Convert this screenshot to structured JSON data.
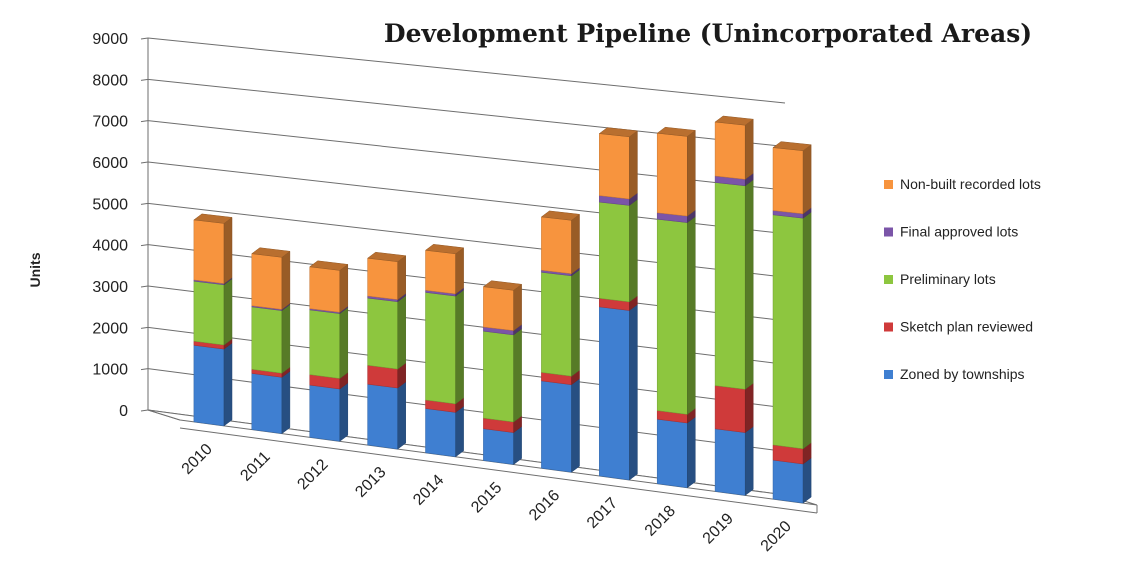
{
  "chart_data": {
    "type": "bar",
    "stacked": true,
    "three_d": true,
    "title": "Development Pipeline (Unincorporated Areas)",
    "ylabel": "Units",
    "xlabel": "",
    "ylim": [
      0,
      9000
    ],
    "yticks": [
      0,
      1000,
      2000,
      3000,
      4000,
      5000,
      6000,
      7000,
      8000,
      9000
    ],
    "grid": true,
    "legend_position": "right",
    "categories": [
      "2010",
      "2011",
      "2012",
      "2013",
      "2014",
      "2015",
      "2016",
      "2017",
      "2018",
      "2019",
      "2020"
    ],
    "series": [
      {
        "name": "Zoned by townships",
        "color": "#3f7fd1",
        "values": [
          1850,
          1350,
          1250,
          1450,
          1050,
          750,
          2050,
          3950,
          1500,
          1450,
          900
        ]
      },
      {
        "name": "Sketch plan reviewed",
        "color": "#cf3a3a",
        "values": [
          100,
          100,
          250,
          450,
          200,
          250,
          200,
          200,
          200,
          1000,
          350
        ]
      },
      {
        "name": "Preliminary lots",
        "color": "#8dc63f",
        "values": [
          1450,
          1500,
          1550,
          1600,
          2550,
          2050,
          2350,
          2250,
          4450,
          4700,
          5300
        ]
      },
      {
        "name": "Final approved lots",
        "color": "#7b55a8",
        "values": [
          30,
          30,
          30,
          50,
          50,
          100,
          50,
          150,
          150,
          150,
          100
        ]
      },
      {
        "name": "Non-built recorded lots",
        "color": "#f7943e",
        "values": [
          1450,
          1250,
          1000,
          900,
          950,
          950,
          1250,
          1450,
          1850,
          1250,
          1450
        ]
      }
    ]
  }
}
